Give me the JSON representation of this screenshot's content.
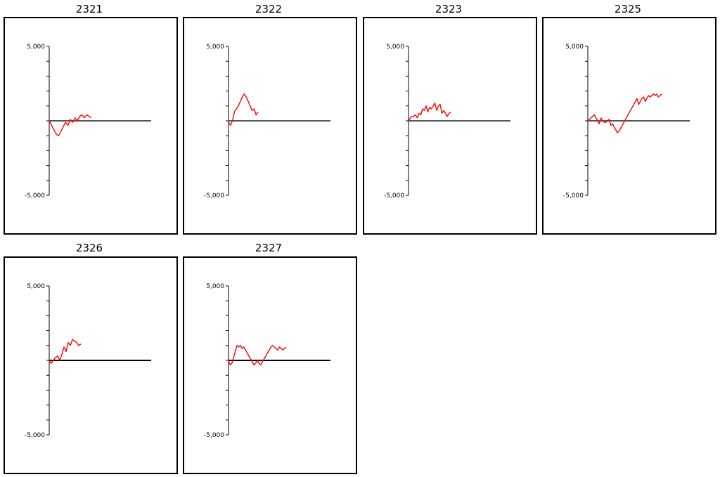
{
  "chart_data": [
    {
      "type": "line",
      "title": "2321",
      "ylim": [
        -5000,
        5000
      ],
      "ytick_labels": {
        "top": "5,000",
        "bottom": "-5,000"
      },
      "series_color": "#ff0000",
      "axis_color": "#555555",
      "x": [
        0,
        1,
        2,
        3,
        4,
        5,
        6,
        7,
        8,
        9,
        10,
        11,
        12,
        13,
        14,
        15,
        16,
        17,
        18
      ],
      "values": [
        0,
        -300,
        -600,
        -900,
        -1000,
        -700,
        -400,
        -100,
        -300,
        100,
        -100,
        200,
        0,
        300,
        400,
        200,
        400,
        300,
        200
      ]
    },
    {
      "type": "line",
      "title": "2322",
      "ylim": [
        -5000,
        5000
      ],
      "ytick_labels": {
        "top": "5,000",
        "bottom": "-5,000"
      },
      "series_color": "#ff0000",
      "axis_color": "#555555",
      "x": [
        0,
        1,
        2,
        3,
        4,
        5,
        6,
        7,
        8,
        9,
        10,
        11,
        12,
        13,
        14,
        15
      ],
      "values": [
        -100,
        -300,
        0,
        600,
        800,
        1000,
        1300,
        1600,
        1800,
        1600,
        1300,
        1000,
        700,
        800,
        400,
        600
      ]
    },
    {
      "type": "line",
      "title": "2323",
      "ylim": [
        -5000,
        5000
      ],
      "ytick_labels": {
        "top": "5,000",
        "bottom": "-5,000"
      },
      "series_color": "#ff0000",
      "axis_color": "#555555",
      "x": [
        0,
        1,
        2,
        3,
        4,
        5,
        6,
        7,
        8,
        9,
        10,
        11,
        12,
        13,
        14,
        15,
        16,
        17,
        18,
        19,
        20,
        21,
        22,
        23,
        24
      ],
      "values": [
        0,
        200,
        300,
        300,
        400,
        200,
        500,
        400,
        800,
        700,
        1000,
        600,
        900,
        800,
        1000,
        1200,
        700,
        1000,
        1100,
        500,
        700,
        500,
        300,
        500,
        600
      ]
    },
    {
      "type": "line",
      "title": "2325",
      "ylim": [
        -5000,
        5000
      ],
      "ytick_labels": {
        "top": "5,000",
        "bottom": "-5,000"
      },
      "series_color": "#ff0000",
      "axis_color": "#555555",
      "x": [
        0,
        1,
        2,
        3,
        4,
        5,
        6,
        7,
        8,
        9,
        10,
        11,
        12,
        13,
        14,
        15,
        16,
        17,
        18,
        19,
        20,
        21,
        22,
        23,
        24,
        25,
        26,
        27,
        28,
        29,
        30,
        31,
        32,
        33,
        34,
        35,
        36,
        37,
        38,
        39,
        40,
        41,
        42,
        43,
        44,
        45
      ],
      "values": [
        0,
        100,
        200,
        300,
        400,
        200,
        0,
        -200,
        200,
        0,
        -100,
        -100,
        0,
        100,
        -300,
        -200,
        -400,
        -600,
        -800,
        -700,
        -500,
        -300,
        -100,
        100,
        300,
        500,
        700,
        900,
        1100,
        1300,
        1500,
        1100,
        1300,
        1500,
        1600,
        1300,
        1500,
        1700,
        1600,
        1700,
        1800,
        1700,
        1800,
        1600,
        1700,
        1800
      ]
    },
    {
      "type": "line",
      "title": "2326",
      "ylim": [
        -5000,
        5000
      ],
      "ytick_labels": {
        "top": "5,000",
        "bottom": "-5,000"
      },
      "series_color": "#ff0000",
      "axis_color": "#000000",
      "x": [
        0,
        1,
        2,
        3,
        4,
        5,
        6,
        7,
        8,
        9,
        10,
        11,
        12,
        13,
        14,
        15
      ],
      "values": [
        0,
        -200,
        0,
        200,
        300,
        0,
        400,
        900,
        600,
        1200,
        1000,
        1400,
        1300,
        1200,
        1000,
        1100
      ]
    },
    {
      "type": "line",
      "title": "2327",
      "ylim": [
        -5000,
        5000
      ],
      "ytick_labels": {
        "top": "5,000",
        "bottom": "-5,000"
      },
      "series_color": "#ff0000",
      "axis_color": "#000000",
      "x": [
        0,
        1,
        2,
        3,
        4,
        5,
        6,
        7,
        8,
        9,
        10,
        11,
        12,
        13,
        14,
        15,
        16,
        17,
        18,
        19,
        20,
        21,
        22,
        23,
        24,
        25,
        26,
        27,
        28,
        29,
        30,
        31,
        32,
        33,
        34
      ],
      "values": [
        0,
        -300,
        -200,
        200,
        600,
        1000,
        900,
        1000,
        800,
        900,
        700,
        500,
        300,
        100,
        -100,
        -300,
        -200,
        0,
        -200,
        -300,
        -100,
        100,
        300,
        500,
        700,
        900,
        1000,
        900,
        800,
        700,
        900,
        800,
        700,
        800,
        900
      ]
    }
  ]
}
